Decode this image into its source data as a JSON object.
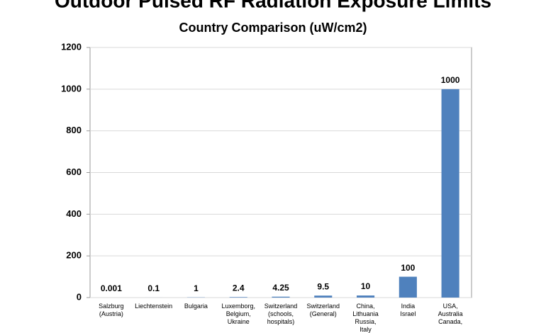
{
  "chart_data": {
    "type": "bar",
    "title": "Outdoor Pulsed RF Radiation Exposure Limits",
    "subtitle": "Country Comparison (uW/cm2)",
    "categories": [
      [
        "Salzburg",
        "(Austria)"
      ],
      [
        "Liechtenstein"
      ],
      [
        "Bulgaria"
      ],
      [
        "Luxemborg,",
        "Belgium,",
        "Ukraine"
      ],
      [
        "Switzerland",
        "(schools,",
        "hospitals)"
      ],
      [
        "Switzerland",
        "(General)"
      ],
      [
        "China,",
        "Lithuania",
        "Russia,",
        "Italy"
      ],
      [
        "India",
        "Israel"
      ],
      [
        "USA,",
        "Australia",
        "Canada,"
      ]
    ],
    "values": [
      0.001,
      0.1,
      1,
      2.4,
      4.25,
      9.5,
      10,
      100,
      1000
    ],
    "color": "#4f81bd",
    "ylim": [
      0,
      1200
    ],
    "yticks": [
      0,
      200,
      400,
      600,
      800,
      1000,
      1200
    ],
    "grid": true
  }
}
